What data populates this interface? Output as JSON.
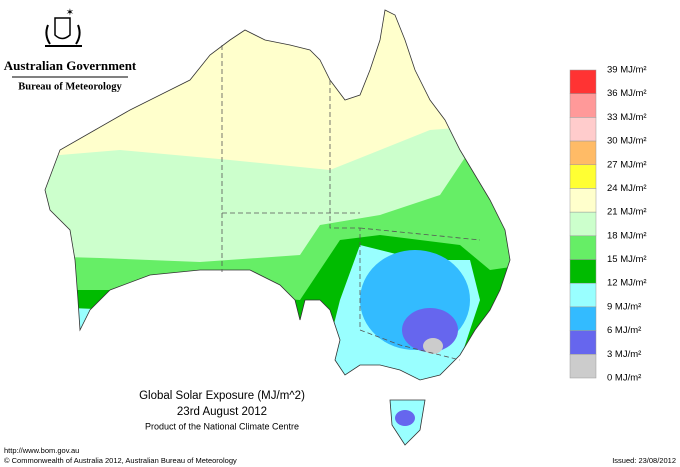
{
  "header": {
    "title": "Australian Government",
    "subtitle": "Bureau of Meteorology"
  },
  "legend": {
    "labels": [
      "39 MJ/m²",
      "36 MJ/m²",
      "33 MJ/m²",
      "30 MJ/m²",
      "27 MJ/m²",
      "24 MJ/m²",
      "21 MJ/m²",
      "18 MJ/m²",
      "15 MJ/m²",
      "12 MJ/m²",
      "9 MJ/m²",
      "6 MJ/m²",
      "3 MJ/m²",
      "0 MJ/m²"
    ],
    "colors": [
      "#ff3333",
      "#ff9999",
      "#ffcccc",
      "#ffbb66",
      "#ffff33",
      "#ffffcc",
      "#ccffcc",
      "#66ee66",
      "#00bb00",
      "#99ffff",
      "#33bbff",
      "#6666ee",
      "#cccccc"
    ]
  },
  "caption": {
    "title": "Global Solar Exposure (MJ/m^2)",
    "date": "23rd August 2012",
    "credit": "Product of the National Climate Centre"
  },
  "footer": {
    "url": "http://www.bom.gov.au",
    "copyright": "© Commonwealth of Australia 2012, Australian Bureau of Meteorology",
    "issued": "Issued: 23/08/2012"
  }
}
